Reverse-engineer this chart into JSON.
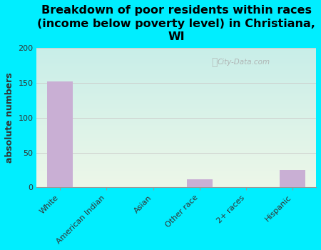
{
  "title": "Breakdown of poor residents within races\n(income below poverty level) in Christiana,\nWI",
  "categories": [
    "White",
    "American Indian",
    "Asian",
    "Other race",
    "2+ races",
    "Hispanic"
  ],
  "values": [
    152,
    0,
    0,
    12,
    0,
    25
  ],
  "bar_color": "#c9afd4",
  "ylabel": "absolute numbers",
  "ylim": [
    0,
    200
  ],
  "yticks": [
    0,
    50,
    100,
    150,
    200
  ],
  "background_color": "#00eeff",
  "grad_top": "#c8eee8",
  "grad_bottom": "#edf7e8",
  "grid_color": "#cccccc",
  "title_fontsize": 11.5,
  "label_fontsize": 9,
  "tick_fontsize": 8,
  "watermark": "City-Data.com"
}
